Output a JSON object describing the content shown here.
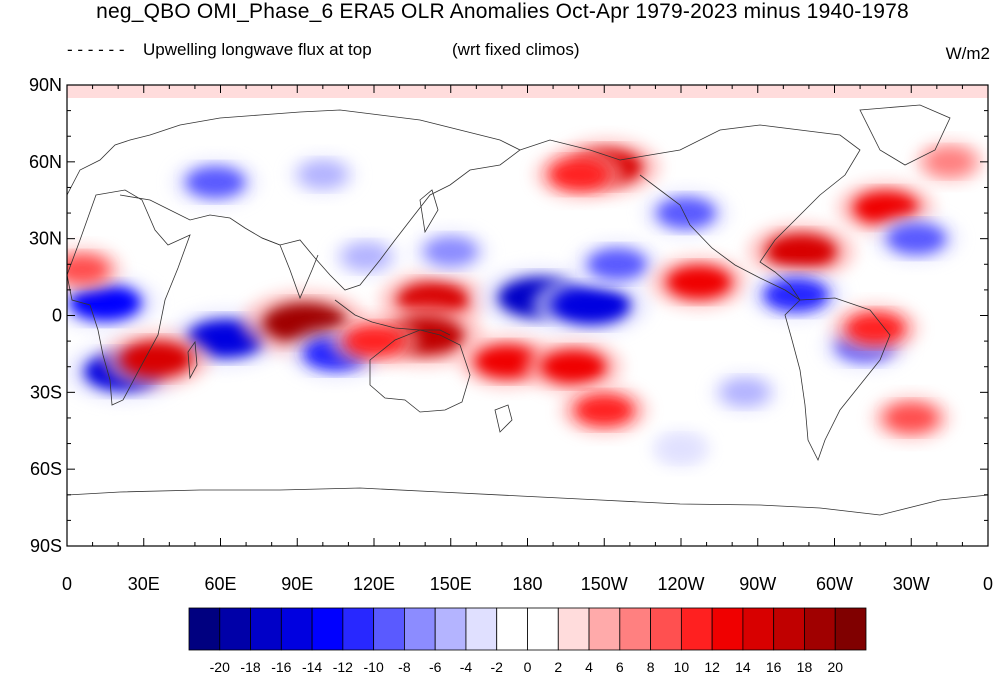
{
  "title": "neg_QBO OMI_Phase_6 ERA5 OLR Anomalies Oct-Apr 1979-2023 minus 1940-1978",
  "legend_dashes": "- - - - - -",
  "variable_label": "Upwelling longwave flux at top",
  "climo_note": "(wrt fixed climos)",
  "units": "W/m2",
  "lat_labels": [
    "90N",
    "60N",
    "30N",
    "0",
    "30S",
    "60S",
    "90S"
  ],
  "lon_labels": [
    "0",
    "30E",
    "60E",
    "90E",
    "120E",
    "150E",
    "180",
    "150W",
    "120W",
    "90W",
    "60W",
    "30W",
    "0"
  ],
  "colorbar": {
    "labels": [
      "-20",
      "-18",
      "-16",
      "-14",
      "-12",
      "-10",
      "-8",
      "-6",
      "-4",
      "-2",
      "0",
      "2",
      "4",
      "6",
      "8",
      "10",
      "12",
      "14",
      "16",
      "18",
      "20"
    ],
    "colors": [
      "#000080",
      "#0000a8",
      "#0000c8",
      "#0000e0",
      "#0000ff",
      "#2828ff",
      "#5a5aff",
      "#8c8cff",
      "#b4b4ff",
      "#e0e0ff",
      "#ffffff",
      "#ffffff",
      "#ffdcdc",
      "#ffaaaa",
      "#ff8080",
      "#ff5050",
      "#ff2020",
      "#f00000",
      "#d80000",
      "#c00000",
      "#a00000",
      "#800000"
    ]
  },
  "chart_data": {
    "type": "heatmap",
    "projection": "cylindrical-equidistant",
    "lon_range": [
      0,
      360
    ],
    "lat_range": [
      -90,
      90
    ],
    "anomalies": [
      {
        "lon": 15,
        "lat": 5,
        "value": -14
      },
      {
        "lon": 22,
        "lat": -22,
        "value": -16
      },
      {
        "lon": 62,
        "lat": -9,
        "value": -16
      },
      {
        "lon": 35,
        "lat": -17,
        "value": 14
      },
      {
        "lon": 58,
        "lat": 52,
        "value": -10
      },
      {
        "lon": 93,
        "lat": -3,
        "value": 18
      },
      {
        "lon": 117,
        "lat": 23,
        "value": -6
      },
      {
        "lon": 143,
        "lat": 6,
        "value": 14
      },
      {
        "lon": 140,
        "lat": -8,
        "value": 16
      },
      {
        "lon": 185,
        "lat": 7,
        "value": -18
      },
      {
        "lon": 205,
        "lat": 4,
        "value": -16
      },
      {
        "lon": 215,
        "lat": 20,
        "value": -10
      },
      {
        "lon": 150,
        "lat": 25,
        "value": -8
      },
      {
        "lon": 172,
        "lat": -18,
        "value": 12
      },
      {
        "lon": 198,
        "lat": -20,
        "value": 12
      },
      {
        "lon": 210,
        "lat": -37,
        "value": 10
      },
      {
        "lon": 211,
        "lat": 58,
        "value": 14
      },
      {
        "lon": 247,
        "lat": 13,
        "value": 12
      },
      {
        "lon": 287,
        "lat": 25,
        "value": 14
      },
      {
        "lon": 242,
        "lat": 40,
        "value": -10
      },
      {
        "lon": 285,
        "lat": 8,
        "value": -12
      },
      {
        "lon": 312,
        "lat": -12,
        "value": -10
      },
      {
        "lon": 320,
        "lat": 42,
        "value": 12
      },
      {
        "lon": 332,
        "lat": 30,
        "value": -10
      },
      {
        "lon": 330,
        "lat": -40,
        "value": 8
      },
      {
        "lon": 316,
        "lat": -5,
        "value": 10
      },
      {
        "lon": 6,
        "lat": 18,
        "value": 8
      },
      {
        "lon": 105,
        "lat": -15,
        "value": -12
      },
      {
        "lon": 120,
        "lat": -10,
        "value": 10
      },
      {
        "lon": 265,
        "lat": -30,
        "value": -6
      },
      {
        "lon": 240,
        "lat": -52,
        "value": -4
      },
      {
        "lon": 200,
        "lat": 55,
        "value": 10
      },
      {
        "lon": 100,
        "lat": 55,
        "value": -6
      },
      {
        "lon": 345,
        "lat": 60,
        "value": 6
      }
    ]
  }
}
